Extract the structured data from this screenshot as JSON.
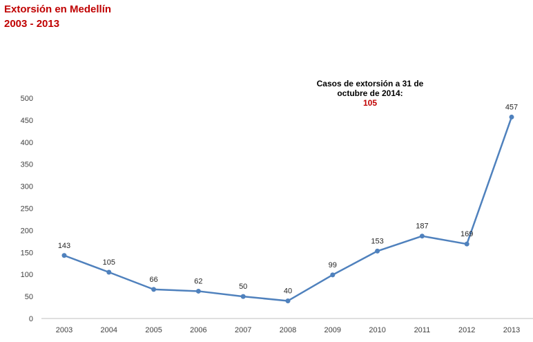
{
  "title": {
    "line1": "Extorsión  en Medellín",
    "line2": "2003 - 2013"
  },
  "annotation": {
    "line1": "Casos de extorsión a 31 de",
    "line2": "octubre de 2014:",
    "value": "105"
  },
  "colors": {
    "title": "#c00000",
    "line": "#4f81bd",
    "axis": "#bfbfbf",
    "annotation_value": "#c00000"
  },
  "chart_data": {
    "type": "line",
    "title": "Extorsión  en Medellín 2003 - 2013",
    "categories": [
      "2003",
      "2004",
      "2005",
      "2006",
      "2007",
      "2008",
      "2009",
      "2010",
      "2011",
      "2012",
      "2013"
    ],
    "values": [
      143,
      105,
      66,
      62,
      50,
      40,
      99,
      153,
      187,
      169,
      457
    ],
    "data_labels": [
      "143",
      "105",
      "66",
      "62",
      "50",
      "40",
      "99",
      "153",
      "187",
      "169",
      "457"
    ],
    "ylim": [
      0,
      500
    ],
    "yticks": [
      "0",
      "50",
      "100",
      "150",
      "200",
      "250",
      "300",
      "350",
      "400",
      "450",
      "500"
    ],
    "grid": false,
    "legend": "none",
    "xlabel": "",
    "ylabel": ""
  }
}
